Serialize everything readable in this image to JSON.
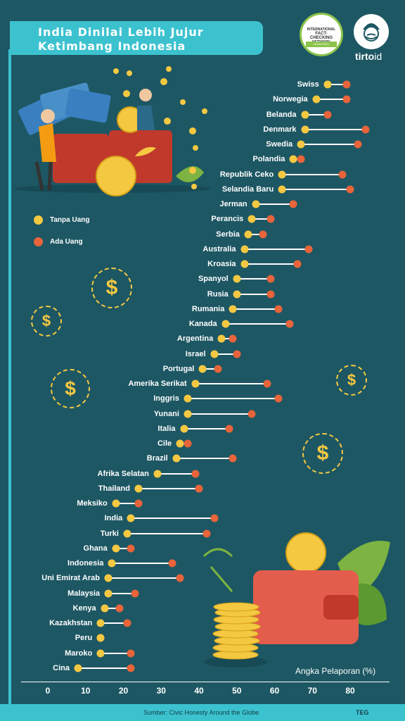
{
  "header": {
    "title_line1": "India Dinilai Lebih Jujur",
    "title_line2": "Ketimbang Indonesia"
  },
  "badge": {
    "line1": "INTERNATIONAL",
    "line2": "FACT-CHECKING",
    "line3": "NETWORK",
    "band": "SIGNATORY"
  },
  "brand": {
    "name": "tirto",
    "suffix": "id"
  },
  "legend": [
    {
      "label": "Tanpa Uang",
      "color": "#f5c842"
    },
    {
      "label": "Ada Uang",
      "color": "#e8643a"
    }
  ],
  "icons": [
    "dollar-coin-icon",
    "wallet-icon",
    "money-stack-icon",
    "leaf-icon"
  ],
  "chart_data": {
    "type": "dumbbell",
    "xlabel": "Angka Pelaporan (%)",
    "xlim": [
      0,
      80
    ],
    "x_ticks": [
      0,
      10,
      20,
      30,
      40,
      50,
      60,
      70,
      80
    ],
    "series_names": [
      "Tanpa Uang",
      "Ada Uang"
    ],
    "categories": [
      "Swiss",
      "Norwegia",
      "Belanda",
      "Denmark",
      "Swedia",
      "Polandia",
      "Republik Ceko",
      "Selandia Baru",
      "Jerman",
      "Perancis",
      "Serbia",
      "Australia",
      "Kroasia",
      "Spanyol",
      "Rusia",
      "Rumania",
      "Kanada",
      "Argentina",
      "Israel",
      "Portugal",
      "Amerika Serikat",
      "Inggris",
      "Yunani",
      "Italia",
      "Cile",
      "Brazil",
      "Afrika Selatan",
      "Thailand",
      "Meksiko",
      "India",
      "Turki",
      "Ghana",
      "Indonesia",
      "Uni Emirat Arab",
      "Malaysia",
      "Kenya",
      "Kazakhstan",
      "Peru",
      "Maroko",
      "Cina"
    ],
    "tanpa_uang": [
      74,
      71,
      68,
      68,
      67,
      65,
      62,
      62,
      55,
      54,
      53,
      52,
      52,
      50,
      50,
      49,
      47,
      46,
      44,
      41,
      39,
      37,
      37,
      36,
      35,
      34,
      29,
      24,
      18,
      22,
      21,
      18,
      17,
      16,
      16,
      15,
      14,
      14,
      14,
      8
    ],
    "ada_uang": [
      79,
      79,
      74,
      84,
      82,
      67,
      78,
      80,
      65,
      59,
      57,
      69,
      66,
      59,
      59,
      61,
      64,
      49,
      50,
      45,
      58,
      61,
      54,
      48,
      37,
      49,
      39,
      40,
      24,
      44,
      42,
      22,
      33,
      35,
      23,
      19,
      21,
      14,
      22,
      22
    ],
    "colors": {
      "tanpa_uang": "#f5c842",
      "ada_uang": "#e8643a"
    }
  },
  "footer": {
    "source": "Sumber:  Civic Honesty Around the Globe",
    "credit": "TEG"
  }
}
